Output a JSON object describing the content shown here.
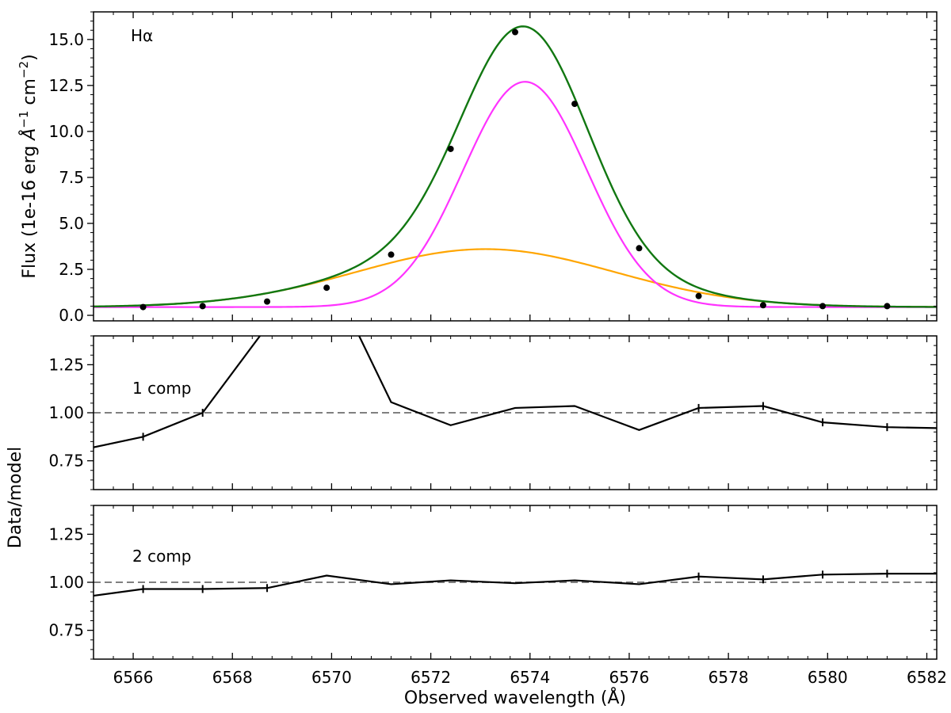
{
  "chart_data": {
    "type": "line",
    "xlabel": "Observed wavelength (Å)",
    "xlim": [
      6565.2,
      6582.2
    ],
    "xticks": [
      6566,
      6568,
      6570,
      6572,
      6574,
      6576,
      6578,
      6580,
      6582
    ],
    "shared_ylabel": "Data/model",
    "panels": [
      {
        "id": "fit",
        "annotation": "Hα",
        "ylabel_parts": {
          "main": "Flux (1e-16 erg ",
          "unit1": "Å",
          "sup1": "−1",
          "mid": " cm",
          "sup2": "−2",
          "end": ")"
        },
        "ylim": [
          -0.3,
          16.5
        ],
        "yticks": [
          0.0,
          2.5,
          5.0,
          7.5,
          10.0,
          12.5,
          15.0
        ],
        "ytick_labels": [
          "0.0",
          "2.5",
          "5.0",
          "7.5",
          "10.0",
          "12.5",
          "15.0"
        ],
        "data_points": {
          "x": [
            6566.2,
            6567.4,
            6568.7,
            6569.9,
            6571.2,
            6572.4,
            6573.7,
            6574.9,
            6576.2,
            6577.4,
            6578.7,
            6579.9,
            6581.2
          ],
          "y": [
            0.45,
            0.5,
            0.75,
            1.5,
            3.3,
            9.05,
            15.4,
            11.5,
            3.65,
            1.05,
            0.55,
            0.5,
            0.5
          ]
        },
        "models": {
          "continuum": 0.45,
          "narrow": {
            "amplitude": 12.25,
            "center": 6573.9,
            "sigma": 1.25,
            "color": "#ff33ff"
          },
          "broad": {
            "amplitude": 3.15,
            "center": 6573.1,
            "sigma": 2.6,
            "color": "#ffa500"
          },
          "total_color": "#117711"
        }
      },
      {
        "id": "ratio1",
        "annotation": "1 comp",
        "ylim": [
          0.6,
          1.4
        ],
        "yticks": [
          0.75,
          1.0,
          1.25
        ],
        "ytick_labels": [
          "0.75",
          "1.00",
          "1.25"
        ],
        "reference": 1.0,
        "series": {
          "x": [
            6565.2,
            6566.2,
            6567.4,
            6568.7,
            6569.9,
            6571.2,
            6572.4,
            6573.7,
            6574.9,
            6576.2,
            6577.4,
            6578.7,
            6579.9,
            6581.2,
            6582.2
          ],
          "y": [
            0.82,
            0.875,
            1.0,
            1.45,
            1.75,
            1.055,
            0.935,
            1.025,
            1.035,
            0.91,
            1.025,
            1.035,
            0.95,
            0.925,
            0.92
          ]
        },
        "markers_x": [
          6566.2,
          6567.4,
          6577.4,
          6578.7,
          6579.9,
          6581.2
        ]
      },
      {
        "id": "ratio2",
        "annotation": "2 comp",
        "ylim": [
          0.6,
          1.4
        ],
        "yticks": [
          0.75,
          1.0,
          1.25
        ],
        "ytick_labels": [
          "0.75",
          "1.00",
          "1.25"
        ],
        "reference": 1.0,
        "series": {
          "x": [
            6565.2,
            6566.2,
            6567.4,
            6568.7,
            6569.9,
            6571.2,
            6572.4,
            6573.7,
            6574.9,
            6576.2,
            6577.4,
            6578.7,
            6579.9,
            6581.2,
            6582.2
          ],
          "y": [
            0.93,
            0.965,
            0.965,
            0.97,
            1.035,
            0.99,
            1.01,
            0.995,
            1.01,
            0.99,
            1.03,
            1.015,
            1.04,
            1.045,
            1.045
          ]
        },
        "markers_x": [
          6566.2,
          6567.4,
          6568.7,
          6577.4,
          6578.7,
          6579.9,
          6581.2
        ]
      }
    ]
  }
}
